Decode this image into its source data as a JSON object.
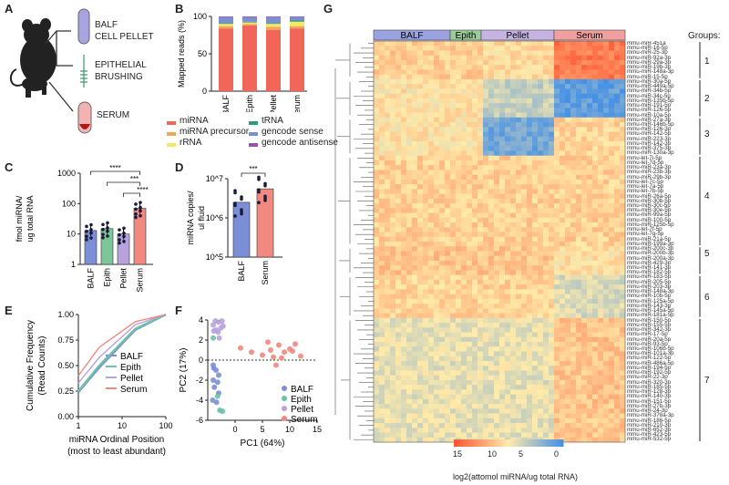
{
  "figure": {
    "panel_labels": [
      "A",
      "B",
      "C",
      "D",
      "E",
      "F",
      "G"
    ],
    "panel_a": {
      "labels": [
        "BALF",
        "CELL PELLET",
        "EPITHELIAL",
        "BRUSHING",
        "SERUM"
      ]
    },
    "legend_b": {
      "items": [
        {
          "label": "miRNA",
          "color": "#f0675a"
        },
        {
          "label": "miRNA precursor",
          "color": "#f5a654"
        },
        {
          "label": "rRNA",
          "color": "#f3e86a"
        },
        {
          "label": "tRNA",
          "color": "#2f9a77"
        },
        {
          "label": "gencode sense",
          "color": "#7a8fd0"
        },
        {
          "label": "gencode antisense",
          "color": "#9c4fb0"
        }
      ]
    },
    "panel_c_sig": [
      "****",
      "***",
      "****"
    ],
    "panel_d_sig": [
      "***"
    ],
    "heatmap": {
      "col_groups": [
        {
          "label": "BALF",
          "color": "#9aa3e0"
        },
        {
          "label": "Epith",
          "color": "#9ccc9c"
        },
        {
          "label": "Pellet",
          "color": "#c6b3e3"
        },
        {
          "label": "Serum",
          "color": "#f0a0a0"
        }
      ],
      "groups_title": "Groups:",
      "group_numbers": [
        "1",
        "2",
        "3",
        "4",
        "5",
        "6",
        "7"
      ],
      "colorbar_ticks": [
        "15",
        "10",
        "5",
        "0"
      ],
      "colorbar_label": "log2(attomol miRNA/ug total RNA)",
      "row_labels": [
        "mmu-miR-451a",
        "mmu-miR-16-5p",
        "mmu-miR-25-3p",
        "mmu-miR-92a-3p",
        "mmu-miR-29a-3p",
        "mmu-miR-19b-3p",
        "mmu-miR-148a-3p",
        "mmu-miR-15-5p",
        "mmu-miR-30a-5p",
        "mmu-miR-449a-5p",
        "mmu-miR-34b-5p",
        "mmu-miR-34c-5p",
        "mmu-miR-135b-5p",
        "mmu-miR-191-5p",
        "mmu-miR-126-5p",
        "mmu-miR-10a-5p",
        "mmu-miR-27a-3p",
        "mmu-miR-146b-5p",
        "mmu-miR-126-3p",
        "mmu-miR-142-5p",
        "mmu-miR-223-3p",
        "mmu-miR-142-3p",
        "mmu-miR-375-3p",
        "mmu-miR-130a-3p",
        "mmu-let-7i-5p",
        "mmu-let-7d-5p",
        "mmu-miR-23a-3p",
        "mmu-miR-23b-3p",
        "mmu-miR-29b-3p",
        "mmu-let-7c-5p",
        "mmu-let-7a-5p",
        "mmu-let-7b-5p",
        "mmu-miR-26a-5p",
        "mmu-miR-30b-5p",
        "mmu-miR-30c-5p",
        "mmu-miR-30e-5p",
        "mmu-miR-99a-5p",
        "mmu-miR-100-5p",
        "mmu-miR-125b-5p",
        "mmu-let-7f-5p",
        "mmu-let-7g-5p",
        "mmu-miR-21a-5p",
        "mmu-miR-199a-3p",
        "mmu-miR-200c-3p",
        "mmu-miR-200b-3p",
        "mmu-miR-200a-3p",
        "mmu-miR-429-3p",
        "mmu-miR-141-3p",
        "mmu-miR-182-5p",
        "mmu-miR-183-5p",
        "mmu-miR-205-5p",
        "mmu-miR-203-3p",
        "mmu-miR-148a-3p",
        "mmu-miR-10b-5p",
        "mmu-miR-125a-5p",
        "mmu-miR-143-3p",
        "mmu-miR-145a-5p",
        "mmu-miR-181a-5p",
        "mmu-miR-150-5p",
        "mmu-miR-155-5p",
        "mmu-miR-342-3p",
        "mmu-miR-17-5p",
        "mmu-miR-20a-5p",
        "mmu-miR-93-5p",
        "mmu-miR-106b-5p",
        "mmu-miR-101a-3p",
        "mmu-miR-122-5p",
        "mmu-miR-486a-5p",
        "mmu-miR-194-5p",
        "mmu-miR-192-5p",
        "mmu-miR-22-3p",
        "mmu-miR-320-3p",
        "mmu-miR-185-5p",
        "mmu-miR-128-3p",
        "mmu-miR-140-3p",
        "mmu-miR-151-5p",
        "mmu-miR-27b-3p",
        "mmu-miR-24-3p",
        "mmu-miR-378a-3p",
        "mmu-miR-186-5p",
        "mmu-miR-210-3p",
        "mmu-miR-652-3p",
        "mmu-miR-423-5p",
        "mmu-miR-532-5p"
      ]
    }
  },
  "chart_data": [
    {
      "panel": "B",
      "type": "bar",
      "stacked": true,
      "categories": [
        "BALF",
        "Epith",
        "Pellet",
        "Serum"
      ],
      "ylabel": "Mapped reads (%)",
      "ylim": [
        0,
        100
      ],
      "yticks": [
        0,
        50,
        100
      ],
      "series": [
        {
          "name": "miRNA",
          "values": [
            84,
            88,
            82,
            84
          ]
        },
        {
          "name": "miRNA precursor",
          "values": [
            3,
            2,
            4,
            3
          ]
        },
        {
          "name": "rRNA",
          "values": [
            3,
            2,
            4,
            6
          ]
        },
        {
          "name": "tRNA",
          "values": [
            1,
            1,
            1,
            2
          ]
        },
        {
          "name": "gencode sense",
          "values": [
            8,
            6,
            8,
            4
          ]
        },
        {
          "name": "gencode antisense",
          "values": [
            1,
            1,
            1,
            1
          ]
        }
      ]
    },
    {
      "panel": "C",
      "type": "bar",
      "scale": "log",
      "categories": [
        "BALF",
        "Epith",
        "Pellet",
        "Serum"
      ],
      "ylabel": "fmol miRNA/ ug total RNA",
      "ylim": [
        1,
        1000
      ],
      "yticks": [
        "1",
        "10",
        "100",
        "1000"
      ],
      "values": [
        13,
        15,
        10,
        70
      ],
      "colors": [
        "#7c8fd6",
        "#7bc79a",
        "#b7a2dd",
        "#f08a80"
      ]
    },
    {
      "panel": "D",
      "type": "bar",
      "scale": "log",
      "categories": [
        "BALF",
        "Serum"
      ],
      "ylabel": "miRNA copies/ ul fluid",
      "ylim": [
        100000,
        10000000
      ],
      "yticks": [
        "10^5",
        "10^6",
        "10^7"
      ],
      "values": [
        2500000,
        5500000
      ],
      "colors": [
        "#7c8fd6",
        "#f08a80"
      ]
    },
    {
      "panel": "E",
      "type": "line",
      "xscale": "log",
      "xlabel": "miRNA Ordinal Position",
      "xlabel2": "(most to least abundant)",
      "ylabel": "Cumulative Frequency",
      "ylabel2": "(Read Counts)",
      "xlim": [
        1,
        100
      ],
      "xticks": [
        "1",
        "10",
        "100"
      ],
      "ylim": [
        0,
        1
      ],
      "yticks": [
        "0.00",
        "0.25",
        "0.50",
        "0.75",
        "1.00"
      ],
      "series": [
        {
          "name": "BALF",
          "color": "#7c8fd6",
          "values": [
            0.24,
            0.48,
            0.85,
            1.0
          ]
        },
        {
          "name": "Epith",
          "color": "#6fc0a8",
          "values": [
            0.25,
            0.5,
            0.86,
            1.0
          ]
        },
        {
          "name": "Pellet",
          "color": "#b7a2dd",
          "values": [
            0.33,
            0.58,
            0.9,
            1.0
          ]
        },
        {
          "name": "Serum",
          "color": "#f08a80",
          "values": [
            0.4,
            0.68,
            0.93,
            1.0
          ]
        }
      ],
      "x": [
        1,
        3,
        20,
        100
      ]
    },
    {
      "panel": "F",
      "type": "scatter",
      "xlabel": "PC1 (64%)",
      "ylabel": "PC2 (17%)",
      "xlim": [
        -5,
        15
      ],
      "xticks": [
        0,
        5,
        10,
        15
      ],
      "ylim": [
        -6,
        4
      ],
      "yticks": [
        4,
        2,
        0,
        -2,
        -4,
        -6
      ],
      "series": [
        {
          "name": "BALF",
          "color": "#7c8fd6",
          "points": [
            [
              -4,
              -0.5
            ],
            [
              -3.5,
              -1
            ],
            [
              -4,
              -2
            ],
            [
              -3,
              -1.5
            ],
            [
              -3.8,
              -2.7
            ],
            [
              -3,
              -3.3
            ],
            [
              -4.1,
              -4
            ],
            [
              -3.4,
              -4.2
            ],
            [
              -3.9,
              -0.8
            ],
            [
              -3.2,
              -2.2
            ]
          ]
        },
        {
          "name": "Epith",
          "color": "#6fc0a8",
          "points": [
            [
              -4,
              2.2
            ],
            [
              -3.2,
              -3.6
            ],
            [
              -2.8,
              -5
            ],
            [
              -2.3,
              -5.1
            ]
          ]
        },
        {
          "name": "Pellet",
          "color": "#b7a2dd",
          "points": [
            [
              -4,
              3.5
            ],
            [
              -3,
              3.8
            ],
            [
              -3.5,
              3
            ],
            [
              -2.6,
              3.2
            ],
            [
              -3.1,
              2.8
            ],
            [
              -2.2,
              3.4
            ],
            [
              -3.6,
              3.9
            ],
            [
              -2.9,
              2.2
            ],
            [
              -2.4,
              3.9
            ],
            [
              -3.9,
              2.9
            ]
          ]
        },
        {
          "name": "Serum",
          "color": "#f08a80",
          "points": [
            [
              1,
              1.2
            ],
            [
              3,
              0.8
            ],
            [
              5,
              0.5
            ],
            [
              6,
              1.8
            ],
            [
              7,
              0.3
            ],
            [
              8,
              1.5
            ],
            [
              7.5,
              -0.5
            ],
            [
              9,
              0.8
            ],
            [
              10,
              1.1
            ],
            [
              11,
              1.6
            ],
            [
              12,
              0.4
            ],
            [
              8.5,
              0.2
            ],
            [
              6.5,
              1
            ],
            [
              10.5,
              0.9
            ]
          ]
        }
      ]
    }
  ]
}
